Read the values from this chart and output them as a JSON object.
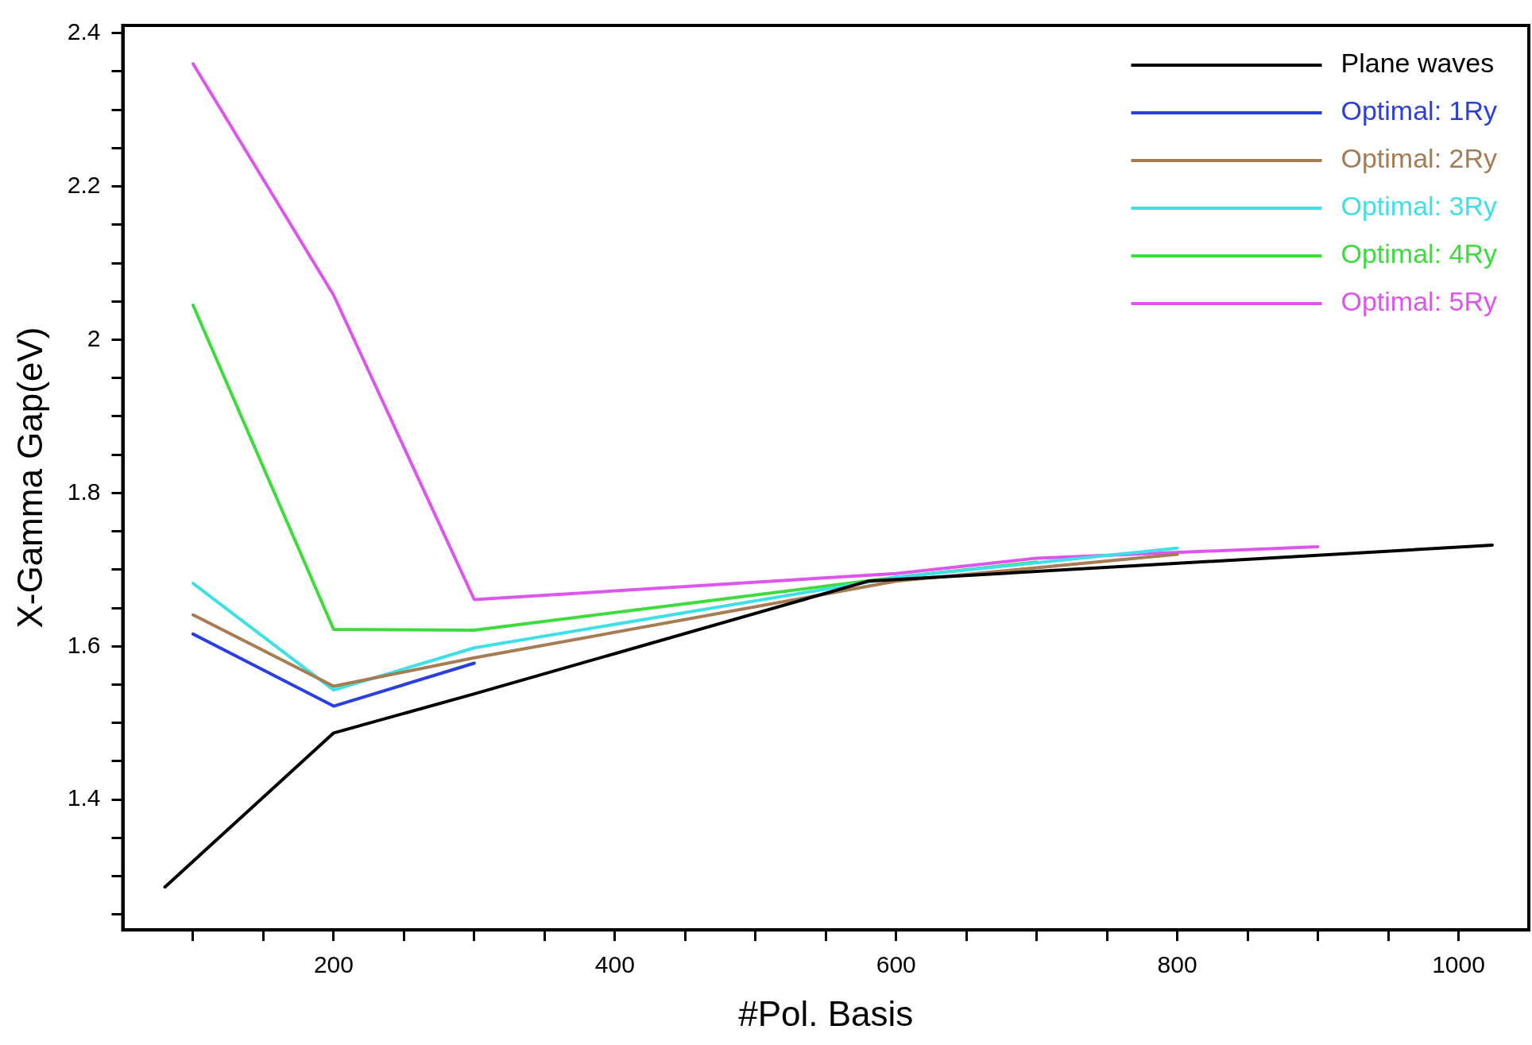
{
  "chart_data": {
    "type": "line",
    "xlabel": "#Pol. Basis",
    "ylabel": "X-Gamma Gap(eV)",
    "xlim": [
      50,
      1050
    ],
    "ylim": [
      1.23,
      2.41
    ],
    "xticks": [
      {
        "value": 100,
        "label": null
      },
      {
        "value": 150,
        "label": null
      },
      200,
      {
        "value": 250,
        "label": null
      },
      {
        "value": 300,
        "label": null
      },
      {
        "value": 350,
        "label": null
      },
      400,
      {
        "value": 450,
        "label": null
      },
      {
        "value": 500,
        "label": null
      },
      {
        "value": 550,
        "label": null
      },
      600,
      {
        "value": 650,
        "label": null
      },
      {
        "value": 700,
        "label": null
      },
      {
        "value": 750,
        "label": null
      },
      800,
      {
        "value": 850,
        "label": null
      },
      {
        "value": 900,
        "label": null
      },
      {
        "value": 950,
        "label": null
      },
      1000
    ],
    "yticks": [
      {
        "value": 1.25,
        "label": null
      },
      {
        "value": 1.3,
        "label": null
      },
      {
        "value": 1.35,
        "label": null
      },
      1.4,
      {
        "value": 1.45,
        "label": null
      },
      {
        "value": 1.5,
        "label": null
      },
      {
        "value": 1.55,
        "label": null
      },
      1.6,
      {
        "value": 1.65,
        "label": null
      },
      {
        "value": 1.7,
        "label": null
      },
      {
        "value": 1.75,
        "label": null
      },
      1.8,
      {
        "value": 1.85,
        "label": null
      },
      {
        "value": 1.9,
        "label": null
      },
      {
        "value": 1.95,
        "label": null
      },
      {
        "value": 2,
        "label": "2"
      },
      {
        "value": 2.05,
        "label": null
      },
      {
        "value": 2.1,
        "label": null
      },
      {
        "value": 2.15,
        "label": null
      },
      2.2,
      {
        "value": 2.25,
        "label": null
      },
      {
        "value": 2.3,
        "label": null
      },
      {
        "value": 2.35,
        "label": null
      },
      2.4
    ],
    "grid": false,
    "legend": "top right",
    "marker": "none",
    "line_style": "solid",
    "series": [
      {
        "name": "Plane waves",
        "color": "#000000",
        "x": [
          80,
          200,
          300,
          580,
          1024
        ],
        "values": [
          1.286,
          1.487,
          1.538,
          1.685,
          1.732
        ]
      },
      {
        "name": "Optimal: 1Ry",
        "color": "#2a3fdd",
        "x": [
          100,
          200,
          300
        ],
        "values": [
          1.616,
          1.522,
          1.578
        ]
      },
      {
        "name": "Optimal: 2Ry",
        "color": "#a67c52",
        "x": [
          100,
          200,
          300,
          600,
          800
        ],
        "values": [
          1.641,
          1.548,
          1.585,
          1.685,
          1.72
        ]
      },
      {
        "name": "Optimal: 3Ry",
        "color": "#3ee0e8",
        "x": [
          100,
          200,
          300,
          600,
          800
        ],
        "values": [
          1.682,
          1.543,
          1.598,
          1.69,
          1.728
        ]
      },
      {
        "name": "Optimal: 4Ry",
        "color": "#3ddc3d",
        "x": [
          100,
          200,
          300,
          600,
          700
        ],
        "values": [
          2.045,
          1.622,
          1.621,
          1.69,
          1.71
        ]
      },
      {
        "name": "Optimal: 5Ry",
        "color": "#dd55ee",
        "x": [
          100,
          200,
          300,
          600,
          700,
          900
        ],
        "values": [
          2.36,
          2.058,
          1.661,
          1.695,
          1.715,
          1.73
        ]
      }
    ]
  }
}
